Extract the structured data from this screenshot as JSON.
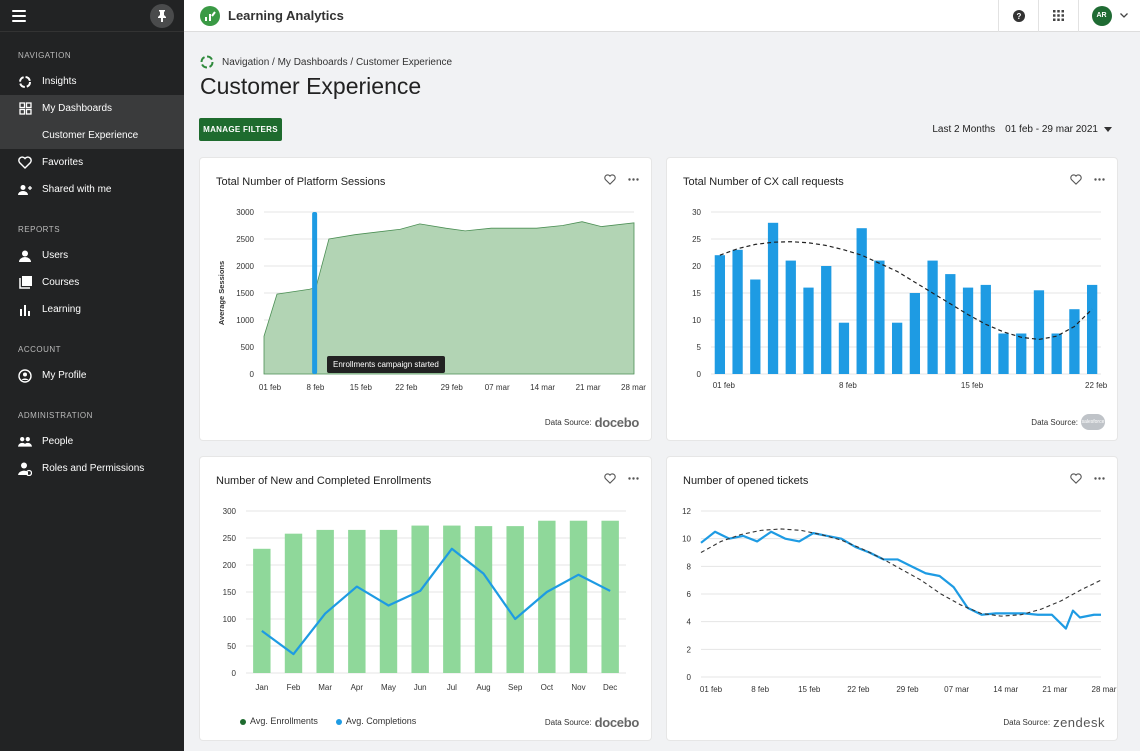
{
  "app": {
    "name": "Learning Analytics",
    "avatar_initials": "AR"
  },
  "sidebar": {
    "sections": [
      {
        "title": "NAVIGATION",
        "items": [
          {
            "label": "Insights",
            "icon": "insights-icon"
          },
          {
            "label": "My Dashboards",
            "icon": "dashboard-icon",
            "active": true,
            "sub": "Customer Experience"
          },
          {
            "label": "Favorites",
            "icon": "heart-icon"
          },
          {
            "label": "Shared with me",
            "icon": "shared-icon"
          }
        ]
      },
      {
        "title": "REPORTS",
        "items": [
          {
            "label": "Users",
            "icon": "user-icon"
          },
          {
            "label": "Courses",
            "icon": "courses-icon"
          },
          {
            "label": "Learning",
            "icon": "learning-icon"
          }
        ]
      },
      {
        "title": "ACCOUNT",
        "items": [
          {
            "label": "My Profile",
            "icon": "profile-icon"
          }
        ]
      },
      {
        "title": "ADMINISTRATION",
        "items": [
          {
            "label": "People",
            "icon": "people-icon"
          },
          {
            "label": "Roles and Permissions",
            "icon": "roles-icon"
          }
        ]
      }
    ]
  },
  "breadcrumb": "Navigation / My Dashboards / Customer Experience",
  "page_title": "Customer Experience",
  "manage_filters_label": "MANAGE FILTERS",
  "range": {
    "label": "Last 2 Months",
    "value": "01 feb - 29 mar 2021"
  },
  "data_source_label": "Data Source:",
  "cards": {
    "sessions": {
      "title": "Total Number of Platform Sessions",
      "source": "docebo",
      "tooltip": "Enrollments campaign started"
    },
    "cx": {
      "title": "Total Number of CX call requests",
      "source": "salesforce"
    },
    "enrollments": {
      "title": "Number of New and Completed Enrollments",
      "source": "docebo"
    },
    "tickets": {
      "title": "Number of opened tickets",
      "source": "zendesk"
    }
  },
  "colors": {
    "green_area": "#b2d4b4",
    "green_line": "#4c8f55",
    "blue": "#1e9be3",
    "bar_green": "#8fd89a",
    "dark_green": "#1e6b2e"
  },
  "chart_data": [
    {
      "id": "sessions",
      "type": "area",
      "ylabel": "Average Sessions",
      "ylim": [
        0,
        3000
      ],
      "yticks": [
        0,
        500,
        1000,
        1500,
        2000,
        2500,
        3000
      ],
      "x_tick_labels": [
        "01 feb",
        "8 feb",
        "15 feb",
        "22 feb",
        "29 feb",
        "07 mar",
        "14 mar",
        "21 mar",
        "28 mar"
      ],
      "x_tick_positions": [
        0,
        7,
        14,
        21,
        28,
        35,
        42,
        49,
        56
      ],
      "x_max": 57,
      "x": [
        0,
        2,
        7,
        8,
        10,
        14,
        21,
        24,
        28,
        31,
        35,
        42,
        46,
        49,
        52,
        57
      ],
      "values": [
        700,
        1480,
        1570,
        1600,
        2500,
        2580,
        2680,
        2780,
        2700,
        2650,
        2700,
        2700,
        2750,
        2820,
        2730,
        2800
      ],
      "marker": {
        "x": 7.8,
        "value": 3000
      }
    },
    {
      "id": "cx",
      "type": "bar",
      "ylim": [
        0,
        30
      ],
      "yticks": [
        0,
        5,
        10,
        15,
        20,
        25,
        30
      ],
      "x_tick_labels": [
        "01 feb",
        "8 feb",
        "15 feb",
        "22 feb"
      ],
      "x_tick_indices": [
        0,
        7,
        14,
        21
      ],
      "values": [
        22,
        23,
        17.5,
        28,
        21,
        16,
        20,
        9.5,
        27,
        21,
        9.5,
        15,
        21,
        18.5,
        16,
        16.5,
        7.5,
        7.5,
        15.5,
        7.5,
        12,
        16.5
      ],
      "trend": [
        22,
        23.2,
        24,
        24.4,
        24.5,
        24.3,
        23.8,
        23,
        22,
        20.5,
        19,
        17,
        15,
        13,
        11,
        9.2,
        7.8,
        6.8,
        6.4,
        7,
        8.8,
        12
      ]
    },
    {
      "id": "enrollments",
      "type": "bar",
      "ylim": [
        0,
        300
      ],
      "yticks": [
        0,
        50,
        100,
        150,
        200,
        250,
        300
      ],
      "categories": [
        "Jan",
        "Feb",
        "Mar",
        "Apr",
        "May",
        "Jun",
        "Jul",
        "Aug",
        "Sep",
        "Oct",
        "Nov",
        "Dec"
      ],
      "series": [
        {
          "name": "Avg. Enrollments",
          "type": "bar",
          "values": [
            230,
            258,
            265,
            265,
            265,
            273,
            273,
            272,
            272,
            282,
            282,
            282
          ]
        },
        {
          "name": "Avg. Completions",
          "type": "line",
          "values": [
            78,
            35,
            110,
            160,
            125,
            152,
            230,
            184,
            100,
            150,
            182,
            152
          ]
        }
      ]
    },
    {
      "id": "tickets",
      "type": "line",
      "ylim": [
        0,
        12
      ],
      "yticks": [
        0,
        2,
        4,
        6,
        8,
        10,
        12
      ],
      "x_tick_labels": [
        "01 feb",
        "8 feb",
        "15 feb",
        "22 feb",
        "29 feb",
        "07 mar",
        "14 mar",
        "21 mar",
        "28 mar"
      ],
      "x_tick_positions": [
        0,
        7,
        14,
        21,
        28,
        35,
        42,
        49,
        56
      ],
      "x_max": 57,
      "x": [
        0,
        2,
        4,
        6,
        8,
        10,
        12,
        14,
        16,
        18,
        20,
        22,
        24,
        26,
        28,
        30,
        32,
        34,
        36,
        38,
        40,
        42,
        44,
        46,
        48,
        50,
        52,
        53,
        54,
        55,
        56,
        57
      ],
      "values": [
        9.7,
        10.5,
        10.0,
        10.2,
        9.8,
        10.5,
        10.0,
        9.8,
        10.4,
        10.2,
        10.0,
        9.4,
        9.0,
        8.5,
        8.5,
        8.0,
        7.5,
        7.3,
        6.5,
        5.0,
        4.5,
        4.6,
        4.6,
        4.6,
        4.5,
        4.5,
        3.5,
        4.8,
        4.3,
        4.4,
        4.5,
        4.5
      ],
      "trend": [
        9.0,
        9.8,
        10.3,
        10.6,
        10.7,
        10.6,
        10.3,
        9.9,
        9.3,
        8.6,
        7.8,
        7.0,
        6.0,
        5.2,
        4.6,
        4.4,
        4.5,
        4.9,
        5.5,
        6.3,
        7.0
      ]
    }
  ]
}
